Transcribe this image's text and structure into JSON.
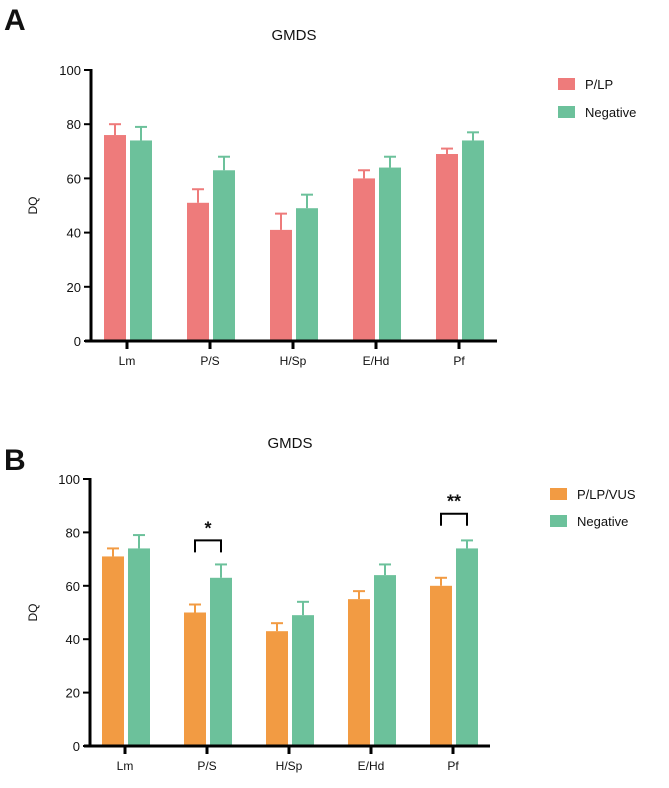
{
  "chart_data": [
    {
      "panel_label": "A",
      "type": "bar",
      "title": "GMDS",
      "xlabel": "",
      "ylabel": "DQ",
      "ylim": [
        0,
        100
      ],
      "yticks": [
        "0",
        "20",
        "40",
        "60",
        "80",
        "100"
      ],
      "categories": [
        "Lm",
        "P/S",
        "H/Sp",
        "E/Hd",
        "Pf"
      ],
      "legend_position": "right",
      "series": [
        {
          "name": "P/LP",
          "color": "#ee7b7b",
          "values": [
            76,
            51,
            41,
            60,
            69
          ],
          "error_upper": [
            80,
            56,
            47,
            63,
            71
          ]
        },
        {
          "name": "Negative",
          "color": "#6cc19b",
          "values": [
            74,
            63,
            49,
            64,
            74
          ],
          "error_upper": [
            79,
            68,
            54,
            68,
            77
          ]
        }
      ],
      "annotations": []
    },
    {
      "panel_label": "B",
      "type": "bar",
      "title": "GMDS",
      "xlabel": "",
      "ylabel": "DQ",
      "ylim": [
        0,
        100
      ],
      "yticks": [
        "0",
        "20",
        "40",
        "60",
        "80",
        "100"
      ],
      "categories": [
        "Lm",
        "P/S",
        "H/Sp",
        "E/Hd",
        "Pf"
      ],
      "legend_position": "right",
      "series": [
        {
          "name": "P/LP/VUS",
          "color": "#f29b43",
          "values": [
            71,
            50,
            43,
            55,
            60
          ],
          "error_upper": [
            74,
            53,
            46,
            58,
            63
          ]
        },
        {
          "name": "Negative",
          "color": "#6cc19b",
          "values": [
            74,
            63,
            49,
            64,
            74
          ],
          "error_upper": [
            79,
            68,
            54,
            68,
            77
          ]
        }
      ],
      "annotations": [
        {
          "category": "P/S",
          "text": "*",
          "bracket_level": 77
        },
        {
          "category": "Pf",
          "text": "**",
          "bracket_level": 87
        }
      ]
    }
  ]
}
